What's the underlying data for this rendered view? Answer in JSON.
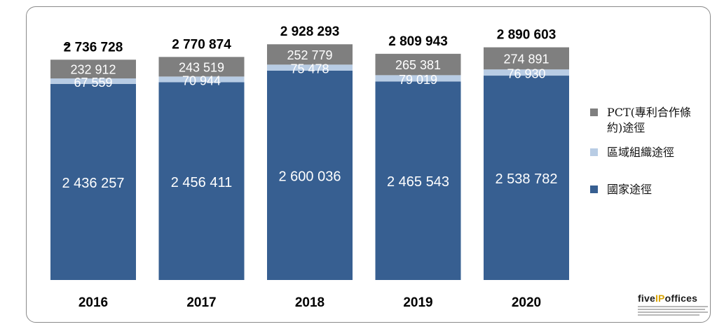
{
  "chart_data": {
    "type": "bar",
    "stacked": true,
    "categories": [
      "2016",
      "2017",
      "2018",
      "2019",
      "2020"
    ],
    "series": [
      {
        "name": "國家途徑",
        "values": [
          2436257,
          2456411,
          2600036,
          2465543,
          2538782
        ],
        "labels": [
          "2 436 257",
          "2 456 411",
          "2 600 036",
          "2 465 543",
          "2 538 782"
        ]
      },
      {
        "name": "區域組織途徑",
        "values": [
          67559,
          70944,
          75478,
          79019,
          76930
        ],
        "labels": [
          "67 559",
          "70 944",
          "75 478",
          "79 019",
          "76 930"
        ]
      },
      {
        "name": "PCT(專利合作條約)途徑",
        "values": [
          232912,
          243519,
          252779,
          265381,
          274891
        ],
        "labels": [
          "232 912",
          "243 519",
          "252 779",
          "265 381",
          "274 891"
        ]
      }
    ],
    "totals": [
      2736728,
      2770874,
      2928293,
      2809943,
      2890603
    ],
    "total_labels": [
      "2 736 728",
      "2 770 874",
      "2 928 293",
      "2 809 943",
      "2 890 603"
    ],
    "ylim": [
      0,
      3000000
    ],
    "grid": false,
    "legend_position": "right"
  },
  "legend": {
    "items": [
      {
        "label": "PCT(專利合作條約)途徑",
        "color": "#7f7f7f"
      },
      {
        "label": "區域組織途徑",
        "color": "#b8cce4"
      },
      {
        "label": "國家途徑",
        "color": "#375f91"
      }
    ]
  },
  "logo": {
    "prefix": "five",
    "accent": "IP",
    "suffix": "offices"
  },
  "colors": {
    "national": "#375f91",
    "regional": "#b8cce4",
    "pct": "#7f7f7f",
    "text_dark": "#000000",
    "text_light": "#ffffff"
  }
}
